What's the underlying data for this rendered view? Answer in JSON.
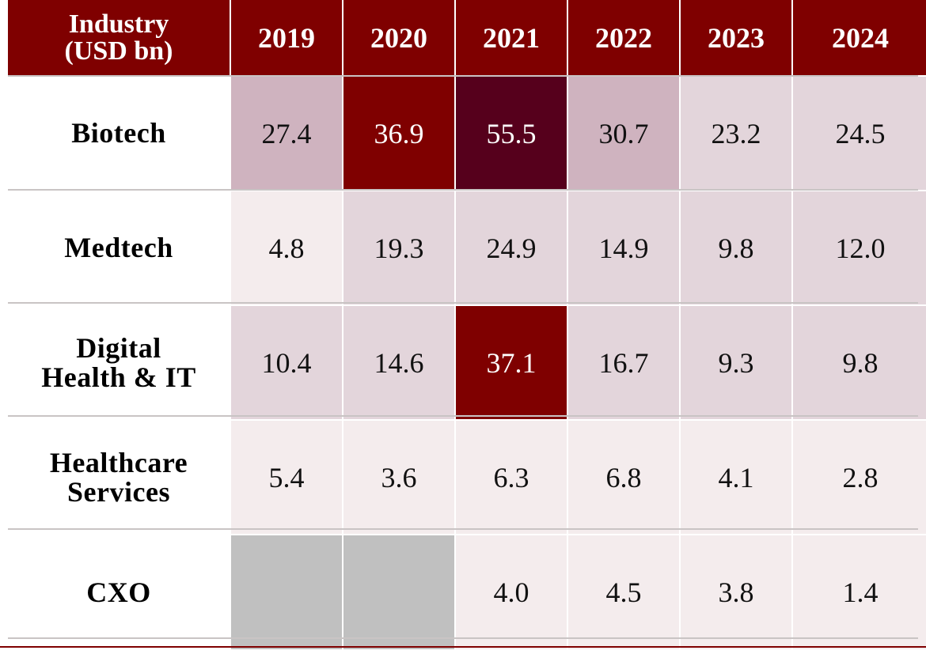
{
  "chart_data": {
    "type": "heatmap",
    "corner_label": [
      "Industry",
      "(USD bn)"
    ],
    "columns": [
      "2019",
      "2020",
      "2021",
      "2022",
      "2023",
      "2024"
    ],
    "rows": [
      {
        "label": [
          "Biotech"
        ],
        "values": [
          "27.4",
          "36.9",
          "55.5",
          "30.7",
          "23.2",
          "24.5"
        ]
      },
      {
        "label": [
          "Medtech"
        ],
        "values": [
          "4.8",
          "19.3",
          "24.9",
          "14.9",
          "9.8",
          "12.0"
        ]
      },
      {
        "label": [
          "Digital",
          "Health & IT"
        ],
        "values": [
          "10.4",
          "14.6",
          "37.1",
          "16.7",
          "9.3",
          "9.8"
        ]
      },
      {
        "label": [
          "Healthcare",
          "Services"
        ],
        "values": [
          "5.4",
          "3.6",
          "6.3",
          "6.8",
          "4.1",
          "2.8"
        ]
      },
      {
        "label": [
          "CXO"
        ],
        "values": [
          null,
          null,
          "4.0",
          "4.5",
          "3.8",
          "1.4"
        ]
      }
    ],
    "colors": {
      "header_bg": "#7f0000",
      "header_text": "#ffffff",
      "missing": "#c0c0c0",
      "scale": [
        {
          "min": 50,
          "bg": "#56001c",
          "text": "#ffffff"
        },
        {
          "min": 35,
          "bg": "#7f0000",
          "text": "#ffffff"
        },
        {
          "min": 25,
          "bg": "#cfb3bf",
          "text": "#111111"
        },
        {
          "min": 8,
          "bg": "#e3d5db",
          "text": "#111111"
        },
        {
          "min": 0,
          "bg": "#f4eced",
          "text": "#111111"
        }
      ]
    }
  }
}
